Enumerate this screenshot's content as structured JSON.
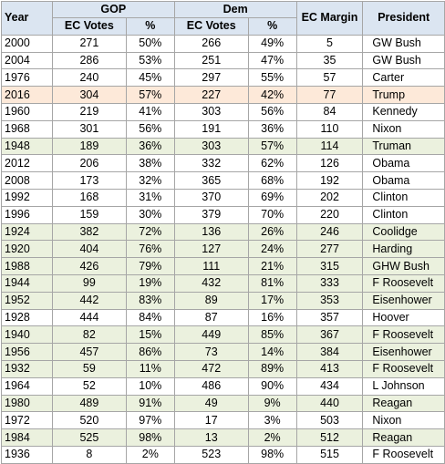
{
  "headers": {
    "year": "Year",
    "gop_group": "GOP",
    "dem_group": "Dem",
    "ec_votes_gop": "EC Votes",
    "pct_gop": "%",
    "ec_votes_dem": "EC Votes",
    "pct_dem": "%",
    "ec_margin": "EC Margin",
    "president": "President"
  },
  "rows": [
    {
      "year": "2000",
      "gop_ec": "271",
      "gop_pct": "50%",
      "dem_ec": "266",
      "dem_pct": "49%",
      "margin": "5",
      "president": "GW Bush",
      "shade": "white"
    },
    {
      "year": "2004",
      "gop_ec": "286",
      "gop_pct": "53%",
      "dem_ec": "251",
      "dem_pct": "47%",
      "margin": "35",
      "president": "GW Bush",
      "shade": "white"
    },
    {
      "year": "1976",
      "gop_ec": "240",
      "gop_pct": "45%",
      "dem_ec": "297",
      "dem_pct": "55%",
      "margin": "57",
      "president": "Carter",
      "shade": "white"
    },
    {
      "year": "2016",
      "gop_ec": "304",
      "gop_pct": "57%",
      "dem_ec": "227",
      "dem_pct": "42%",
      "margin": "77",
      "president": "Trump",
      "shade": "peach"
    },
    {
      "year": "1960",
      "gop_ec": "219",
      "gop_pct": "41%",
      "dem_ec": "303",
      "dem_pct": "56%",
      "margin": "84",
      "president": "Kennedy",
      "shade": "white"
    },
    {
      "year": "1968",
      "gop_ec": "301",
      "gop_pct": "56%",
      "dem_ec": "191",
      "dem_pct": "36%",
      "margin": "110",
      "president": "Nixon",
      "shade": "white"
    },
    {
      "year": "1948",
      "gop_ec": "189",
      "gop_pct": "36%",
      "dem_ec": "303",
      "dem_pct": "57%",
      "margin": "114",
      "president": "Truman",
      "shade": "green"
    },
    {
      "year": "2012",
      "gop_ec": "206",
      "gop_pct": "38%",
      "dem_ec": "332",
      "dem_pct": "62%",
      "margin": "126",
      "president": "Obama",
      "shade": "white"
    },
    {
      "year": "2008",
      "gop_ec": "173",
      "gop_pct": "32%",
      "dem_ec": "365",
      "dem_pct": "68%",
      "margin": "192",
      "president": "Obama",
      "shade": "white"
    },
    {
      "year": "1992",
      "gop_ec": "168",
      "gop_pct": "31%",
      "dem_ec": "370",
      "dem_pct": "69%",
      "margin": "202",
      "president": "Clinton",
      "shade": "white"
    },
    {
      "year": "1996",
      "gop_ec": "159",
      "gop_pct": "30%",
      "dem_ec": "379",
      "dem_pct": "70%",
      "margin": "220",
      "president": "Clinton",
      "shade": "white"
    },
    {
      "year": "1924",
      "gop_ec": "382",
      "gop_pct": "72%",
      "dem_ec": "136",
      "dem_pct": "26%",
      "margin": "246",
      "president": "Coolidge",
      "shade": "green"
    },
    {
      "year": "1920",
      "gop_ec": "404",
      "gop_pct": "76%",
      "dem_ec": "127",
      "dem_pct": "24%",
      "margin": "277",
      "president": "Harding",
      "shade": "green"
    },
    {
      "year": "1988",
      "gop_ec": "426",
      "gop_pct": "79%",
      "dem_ec": "111",
      "dem_pct": "21%",
      "margin": "315",
      "president": "GHW Bush",
      "shade": "green"
    },
    {
      "year": "1944",
      "gop_ec": "99",
      "gop_pct": "19%",
      "dem_ec": "432",
      "dem_pct": "81%",
      "margin": "333",
      "president": "F Roosevelt",
      "shade": "green"
    },
    {
      "year": "1952",
      "gop_ec": "442",
      "gop_pct": "83%",
      "dem_ec": "89",
      "dem_pct": "17%",
      "margin": "353",
      "president": "Eisenhower",
      "shade": "green"
    },
    {
      "year": "1928",
      "gop_ec": "444",
      "gop_pct": "84%",
      "dem_ec": "87",
      "dem_pct": "16%",
      "margin": "357",
      "president": "Hoover",
      "shade": "white"
    },
    {
      "year": "1940",
      "gop_ec": "82",
      "gop_pct": "15%",
      "dem_ec": "449",
      "dem_pct": "85%",
      "margin": "367",
      "president": "F Roosevelt",
      "shade": "green"
    },
    {
      "year": "1956",
      "gop_ec": "457",
      "gop_pct": "86%",
      "dem_ec": "73",
      "dem_pct": "14%",
      "margin": "384",
      "president": "Eisenhower",
      "shade": "green"
    },
    {
      "year": "1932",
      "gop_ec": "59",
      "gop_pct": "11%",
      "dem_ec": "472",
      "dem_pct": "89%",
      "margin": "413",
      "president": "F Roosevelt",
      "shade": "green"
    },
    {
      "year": "1964",
      "gop_ec": "52",
      "gop_pct": "10%",
      "dem_ec": "486",
      "dem_pct": "90%",
      "margin": "434",
      "president": "L Johnson",
      "shade": "white"
    },
    {
      "year": "1980",
      "gop_ec": "489",
      "gop_pct": "91%",
      "dem_ec": "49",
      "dem_pct": "9%",
      "margin": "440",
      "president": "Reagan",
      "shade": "green"
    },
    {
      "year": "1972",
      "gop_ec": "520",
      "gop_pct": "97%",
      "dem_ec": "17",
      "dem_pct": "3%",
      "margin": "503",
      "president": "Nixon",
      "shade": "white"
    },
    {
      "year": "1984",
      "gop_ec": "525",
      "gop_pct": "98%",
      "dem_ec": "13",
      "dem_pct": "2%",
      "margin": "512",
      "president": "Reagan",
      "shade": "green"
    },
    {
      "year": "1936",
      "gop_ec": "8",
      "gop_pct": "2%",
      "dem_ec": "523",
      "dem_pct": "98%",
      "margin": "515",
      "president": "F Roosevelt",
      "shade": "white"
    }
  ],
  "colors": {
    "header_bg": "#dbe5f1",
    "row_green": "#ebf1de",
    "row_peach": "#fde9d9",
    "grid": "#a6a6a6"
  }
}
